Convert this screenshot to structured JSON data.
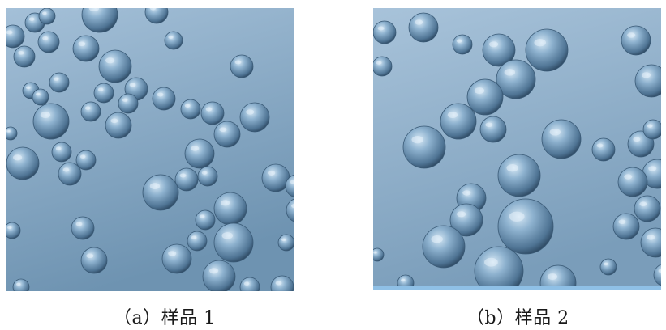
{
  "figure": {
    "panels": [
      {
        "id": "a",
        "caption": "（a）样品 1"
      },
      {
        "id": "b",
        "caption": "（b）样品 2"
      }
    ],
    "colors": {
      "background_top": "#9fbdd6",
      "background_bottom": "#6f95b3",
      "sphere_highlight": "#cfe3f2",
      "sphere_mid": "#7ea3c3",
      "sphere_shadow": "#2f4a63"
    }
  }
}
